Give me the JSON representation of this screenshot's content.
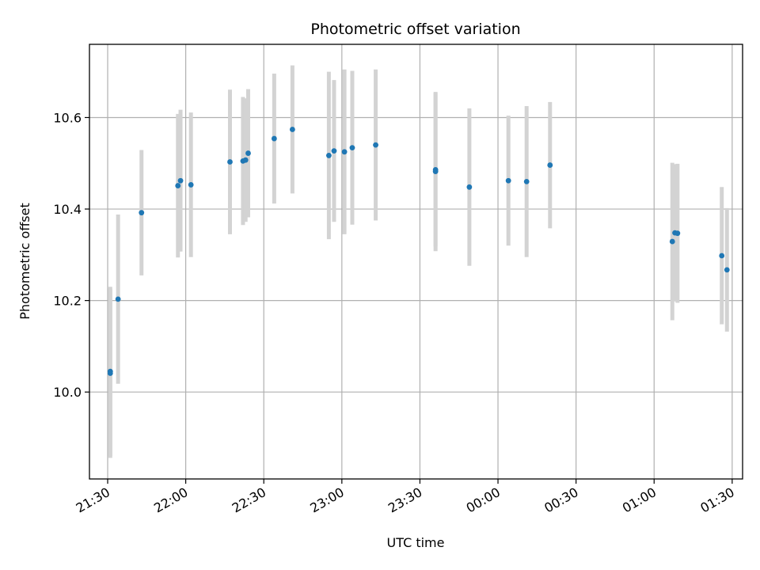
{
  "chart_data": {
    "type": "scatter",
    "title": "Photometric offset variation",
    "xlabel": "UTC time",
    "ylabel": "Photometric offset",
    "x_unit": "UTC time (HH:MM)",
    "xlim": [
      "21:23",
      "01:34"
    ],
    "ylim": [
      9.81,
      10.76
    ],
    "xticks": [
      {
        "time": "21:30",
        "label": "21:30"
      },
      {
        "time": "22:00",
        "label": "22:00"
      },
      {
        "time": "22:30",
        "label": "22:30"
      },
      {
        "time": "23:00",
        "label": "23:00"
      },
      {
        "time": "23:30",
        "label": "23:30"
      },
      {
        "time": "00:00",
        "label": "00:00"
      },
      {
        "time": "00:30",
        "label": "00:30"
      },
      {
        "time": "01:00",
        "label": "01:00"
      },
      {
        "time": "01:30",
        "label": "01:30"
      }
    ],
    "yticks": [
      {
        "value": 10.0,
        "label": "10.0"
      },
      {
        "value": 10.2,
        "label": "10.2"
      },
      {
        "value": 10.4,
        "label": "10.4"
      },
      {
        "value": 10.6,
        "label": "10.6"
      }
    ],
    "grid": true,
    "marker_color": "#1f77b4",
    "errorbar_color": "#d3d3d3",
    "points": [
      {
        "x": "21:31",
        "y": 10.045,
        "err": 0.185
      },
      {
        "x": "21:31",
        "y": 10.041,
        "err": 0.185
      },
      {
        "x": "21:34",
        "y": 10.203,
        "err": 0.185
      },
      {
        "x": "21:43",
        "y": 10.392,
        "err": 0.137
      },
      {
        "x": "21:57",
        "y": 10.451,
        "err": 0.157
      },
      {
        "x": "21:58",
        "y": 10.462,
        "err": 0.155
      },
      {
        "x": "22:02",
        "y": 10.453,
        "err": 0.158
      },
      {
        "x": "22:17",
        "y": 10.503,
        "err": 0.158
      },
      {
        "x": "22:22",
        "y": 10.505,
        "err": 0.14
      },
      {
        "x": "22:23",
        "y": 10.507,
        "err": 0.135
      },
      {
        "x": "22:24",
        "y": 10.522,
        "err": 0.14
      },
      {
        "x": "22:34",
        "y": 10.554,
        "err": 0.142
      },
      {
        "x": "22:41",
        "y": 10.574,
        "err": 0.14
      },
      {
        "x": "22:55",
        "y": 10.517,
        "err": 0.183
      },
      {
        "x": "22:57",
        "y": 10.527,
        "err": 0.155
      },
      {
        "x": "23:01",
        "y": 10.525,
        "err": 0.18
      },
      {
        "x": "23:04",
        "y": 10.534,
        "err": 0.168
      },
      {
        "x": "23:13",
        "y": 10.54,
        "err": 0.165
      },
      {
        "x": "23:36",
        "y": 10.482,
        "err": 0.174
      },
      {
        "x": "23:36",
        "y": 10.486,
        "err": 0.168
      },
      {
        "x": "23:49",
        "y": 10.448,
        "err": 0.172
      },
      {
        "x": "00:04",
        "y": 10.462,
        "err": 0.142
      },
      {
        "x": "00:11",
        "y": 10.46,
        "err": 0.165
      },
      {
        "x": "00:20",
        "y": 10.496,
        "err": 0.138
      },
      {
        "x": "01:07",
        "y": 10.329,
        "err": 0.172
      },
      {
        "x": "01:08",
        "y": 10.348,
        "err": 0.15
      },
      {
        "x": "01:09",
        "y": 10.347,
        "err": 0.152
      },
      {
        "x": "01:26",
        "y": 10.298,
        "err": 0.15
      },
      {
        "x": "01:28",
        "y": 10.267,
        "err": 0.135
      }
    ]
  }
}
